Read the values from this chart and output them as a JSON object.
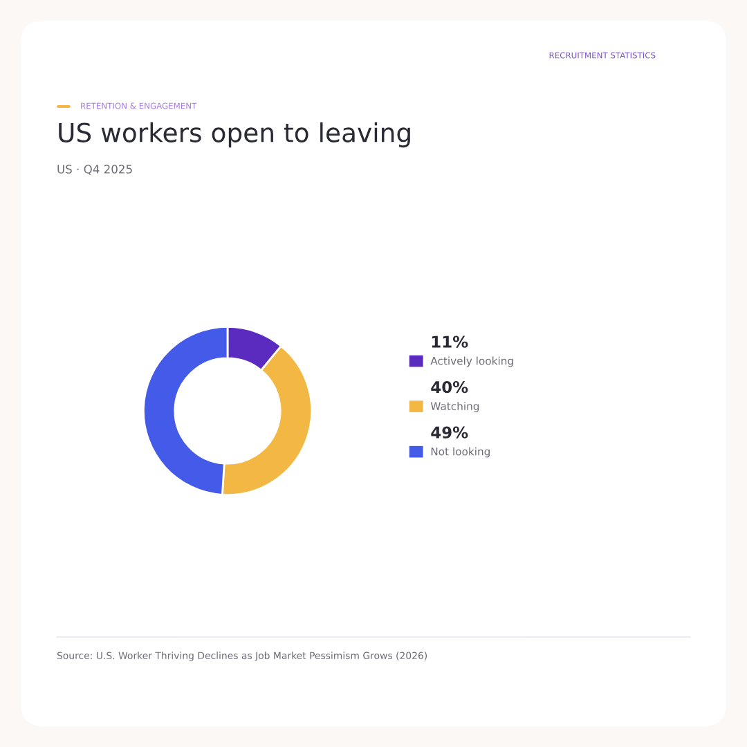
{
  "chart_data": {
    "type": "donut",
    "title": "US workers open to leaving",
    "subtitle": "US · Q4 2025",
    "annotations": [
      "RECRUITMENT STATISTICS",
      "RETENTION & ENGAGEMENT",
      "Source: U.S. Worker Thriving Declines as Job Market Pessimism Grows (2026)"
    ],
    "categories": [
      "Actively looking",
      "Watching",
      "Not looking"
    ],
    "values": [
      11,
      40,
      49
    ],
    "value_labels": [
      "11%",
      "40%",
      "49%"
    ],
    "colors": [
      "#5b2bbf",
      "#f3b843",
      "#445ae8"
    ],
    "legend": "right"
  }
}
